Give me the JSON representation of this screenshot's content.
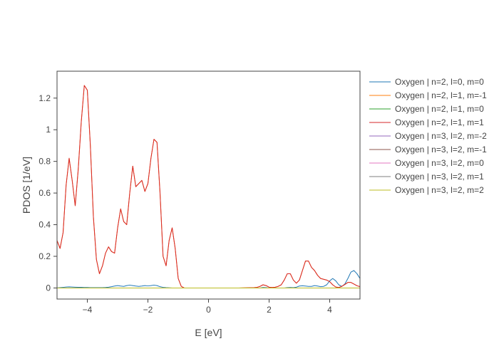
{
  "chart_data": {
    "type": "line",
    "xlabel": "E [eV]",
    "ylabel": "PDOS [1/eV]",
    "xlim": [
      -5,
      5
    ],
    "ylim": [
      -0.07,
      1.37
    ],
    "x_ticks": [
      -4,
      -2,
      0,
      2,
      4
    ],
    "x_tick_labels": [
      "−4",
      "−2",
      "0",
      "2",
      "4"
    ],
    "y_ticks": [
      0,
      0.2,
      0.4,
      0.6,
      0.8,
      1,
      1.2
    ],
    "y_tick_labels": [
      "0",
      "0.2",
      "0.4",
      "0.6",
      "0.8",
      "1",
      "1.2"
    ],
    "grid": false,
    "legend_position": "right",
    "x": [
      -5.0,
      -4.9,
      -4.8,
      -4.7,
      -4.6,
      -4.5,
      -4.4,
      -4.3,
      -4.2,
      -4.1,
      -4.0,
      -3.9,
      -3.8,
      -3.7,
      -3.6,
      -3.5,
      -3.4,
      -3.3,
      -3.2,
      -3.1,
      -3.0,
      -2.9,
      -2.8,
      -2.7,
      -2.6,
      -2.5,
      -2.4,
      -2.3,
      -2.2,
      -2.1,
      -2.0,
      -1.9,
      -1.8,
      -1.7,
      -1.6,
      -1.5,
      -1.4,
      -1.3,
      -1.2,
      -1.1,
      -1.0,
      -0.9,
      -0.8,
      -0.5,
      0.0,
      0.5,
      1.0,
      1.5,
      1.6,
      1.7,
      1.8,
      1.9,
      2.0,
      2.1,
      2.2,
      2.3,
      2.4,
      2.5,
      2.6,
      2.7,
      2.8,
      2.9,
      3.0,
      3.1,
      3.2,
      3.3,
      3.4,
      3.5,
      3.6,
      3.7,
      3.8,
      3.9,
      4.0,
      4.1,
      4.2,
      4.3,
      4.4,
      4.5,
      4.6,
      4.7,
      4.8,
      4.9,
      5.0
    ],
    "series": [
      {
        "name": "Oxygen | n=2, l=0, m=0",
        "color": "#1f77b4",
        "values": [
          0.0,
          0.002,
          0.004,
          0.006,
          0.007,
          0.006,
          0.005,
          0.004,
          0.004,
          0.003,
          0.003,
          0.002,
          0.002,
          0.002,
          0.002,
          0.002,
          0.003,
          0.005,
          0.008,
          0.012,
          0.015,
          0.012,
          0.01,
          0.015,
          0.018,
          0.015,
          0.012,
          0.01,
          0.012,
          0.015,
          0.013,
          0.015,
          0.018,
          0.015,
          0.008,
          0.004,
          0.002,
          0.001,
          0.0,
          0.0,
          0.0,
          0.0,
          0.0,
          0.0,
          0.0,
          0.0,
          0.0,
          0.0,
          0.0,
          0.0,
          0.003,
          0.002,
          0.0,
          0.0,
          0.0,
          0.0,
          0.0,
          0.0,
          0.002,
          0.003,
          0.002,
          0.005,
          0.012,
          0.014,
          0.012,
          0.01,
          0.01,
          0.015,
          0.012,
          0.008,
          0.01,
          0.02,
          0.045,
          0.06,
          0.045,
          0.02,
          0.01,
          0.025,
          0.06,
          0.1,
          0.11,
          0.09,
          0.06
        ]
      },
      {
        "name": "Oxygen | n=2, l=1, m=-1",
        "color": "#ff7f0e",
        "values": [
          0.3,
          0.25,
          0.35,
          0.65,
          0.82,
          0.68,
          0.52,
          0.75,
          1.05,
          1.28,
          1.25,
          0.9,
          0.45,
          0.18,
          0.09,
          0.14,
          0.22,
          0.26,
          0.23,
          0.22,
          0.38,
          0.5,
          0.42,
          0.4,
          0.6,
          0.77,
          0.64,
          0.66,
          0.68,
          0.61,
          0.66,
          0.82,
          0.94,
          0.92,
          0.6,
          0.2,
          0.14,
          0.3,
          0.38,
          0.25,
          0.06,
          0.01,
          0.0,
          0.0,
          0.0,
          0.0,
          0.0,
          0.002,
          0.004,
          0.01,
          0.02,
          0.015,
          0.005,
          0.003,
          0.005,
          0.01,
          0.02,
          0.05,
          0.09,
          0.09,
          0.05,
          0.03,
          0.05,
          0.11,
          0.17,
          0.17,
          0.13,
          0.11,
          0.08,
          0.06,
          0.055,
          0.05,
          0.04,
          0.02,
          0.006,
          0.003,
          0.01,
          0.022,
          0.035,
          0.035,
          0.025,
          0.014,
          0.008
        ]
      },
      {
        "name": "Oxygen | n=2, l=1, m=0",
        "color": "#2ca02c",
        "values": [
          0.0,
          0.0,
          0.0,
          0.0,
          0.0,
          0.0,
          0.0,
          0.0,
          0.0,
          0.0,
          0.0,
          0.0,
          0.0,
          0.0,
          0.0,
          0.0,
          0.0,
          0.0,
          0.0,
          0.0,
          0.0,
          0.0,
          0.0,
          0.0,
          0.0,
          0.0,
          0.0,
          0.0,
          0.0,
          0.0,
          0.0,
          0.0,
          0.0,
          0.0,
          0.0,
          0.0,
          0.0,
          0.0,
          0.0,
          0.0,
          0.0,
          0.0,
          0.0,
          0.0,
          0.0,
          0.0,
          0.0,
          0.0,
          0.0,
          0.0,
          0.0,
          0.0,
          0.0,
          0.0,
          0.0,
          0.0,
          0.0,
          0.0,
          0.0,
          0.0,
          0.0,
          0.0,
          0.0,
          0.0,
          0.0,
          0.0,
          0.0,
          0.0,
          0.0,
          0.0,
          0.0,
          0.0,
          0.0,
          0.0,
          0.0,
          0.0,
          0.0,
          0.0,
          0.0,
          0.0,
          0.0,
          0.0,
          0.0
        ]
      },
      {
        "name": "Oxygen | n=2, l=1, m=1",
        "color": "#d62728",
        "values": [
          0.3,
          0.25,
          0.35,
          0.65,
          0.82,
          0.68,
          0.52,
          0.75,
          1.05,
          1.28,
          1.25,
          0.9,
          0.45,
          0.18,
          0.09,
          0.14,
          0.22,
          0.26,
          0.23,
          0.22,
          0.38,
          0.5,
          0.42,
          0.4,
          0.6,
          0.77,
          0.64,
          0.66,
          0.68,
          0.61,
          0.66,
          0.82,
          0.94,
          0.92,
          0.6,
          0.2,
          0.14,
          0.3,
          0.38,
          0.25,
          0.06,
          0.01,
          0.0,
          0.0,
          0.0,
          0.0,
          0.0,
          0.002,
          0.004,
          0.01,
          0.02,
          0.015,
          0.005,
          0.003,
          0.005,
          0.01,
          0.02,
          0.05,
          0.09,
          0.09,
          0.05,
          0.03,
          0.05,
          0.11,
          0.17,
          0.17,
          0.13,
          0.11,
          0.08,
          0.06,
          0.055,
          0.05,
          0.04,
          0.02,
          0.006,
          0.003,
          0.01,
          0.022,
          0.035,
          0.035,
          0.025,
          0.014,
          0.008
        ]
      },
      {
        "name": "Oxygen | n=3, l=2, m=-2",
        "color": "#9467bd",
        "values": [
          0.0,
          0.0,
          0.0,
          0.0,
          0.0,
          0.0,
          0.0,
          0.0,
          0.0,
          0.0,
          0.0,
          0.0,
          0.0,
          0.0,
          0.0,
          0.0,
          0.0,
          0.0,
          0.0,
          0.0,
          0.0,
          0.0,
          0.0,
          0.0,
          0.0,
          0.0,
          0.0,
          0.0,
          0.0,
          0.0,
          0.0,
          0.0,
          0.0,
          0.0,
          0.0,
          0.0,
          0.0,
          0.0,
          0.0,
          0.0,
          0.0,
          0.0,
          0.0,
          0.0,
          0.0,
          0.0,
          0.0,
          0.0,
          0.0,
          0.0,
          0.0,
          0.0,
          0.0,
          0.0,
          0.0,
          0.0,
          0.0,
          0.0,
          0.0,
          0.0,
          0.0,
          0.0,
          0.0,
          0.0,
          0.0,
          0.0,
          0.0,
          0.0,
          0.0,
          0.0,
          0.0,
          0.0,
          0.0,
          0.0,
          0.0,
          0.0,
          0.0,
          0.0,
          0.0,
          0.0,
          0.0,
          0.0,
          0.0
        ]
      },
      {
        "name": "Oxygen | n=3, l=2, m=-1",
        "color": "#8c564b",
        "values": [
          0.0,
          0.0,
          0.0,
          0.0,
          0.0,
          0.0,
          0.0,
          0.0,
          0.0,
          0.0,
          0.0,
          0.0,
          0.0,
          0.0,
          0.0,
          0.0,
          0.0,
          0.0,
          0.0,
          0.0,
          0.0,
          0.0,
          0.0,
          0.0,
          0.0,
          0.0,
          0.0,
          0.0,
          0.0,
          0.0,
          0.0,
          0.0,
          0.0,
          0.0,
          0.0,
          0.0,
          0.0,
          0.0,
          0.0,
          0.0,
          0.0,
          0.0,
          0.0,
          0.0,
          0.0,
          0.0,
          0.0,
          0.0,
          0.0,
          0.0,
          0.0,
          0.0,
          0.0,
          0.0,
          0.0,
          0.0,
          0.0,
          0.0,
          0.0,
          0.0,
          0.0,
          0.0,
          0.0,
          0.0,
          0.0,
          0.0,
          0.0,
          0.0,
          0.0,
          0.0,
          0.0,
          0.0,
          0.0,
          0.0,
          0.0,
          0.0,
          0.0,
          0.0,
          0.0,
          0.0,
          0.0,
          0.0,
          0.0
        ]
      },
      {
        "name": "Oxygen | n=3, l=2, m=0",
        "color": "#e377c2",
        "values": [
          0.0,
          0.0,
          0.0,
          0.0,
          0.0,
          0.0,
          0.0,
          0.0,
          0.0,
          0.0,
          0.0,
          0.0,
          0.0,
          0.0,
          0.0,
          0.0,
          0.0,
          0.0,
          0.0,
          0.0,
          0.0,
          0.0,
          0.0,
          0.0,
          0.0,
          0.0,
          0.0,
          0.0,
          0.0,
          0.0,
          0.0,
          0.0,
          0.0,
          0.0,
          0.0,
          0.0,
          0.0,
          0.0,
          0.0,
          0.0,
          0.0,
          0.0,
          0.0,
          0.0,
          0.0,
          0.0,
          0.0,
          0.0,
          0.0,
          0.0,
          0.0,
          0.0,
          0.0,
          0.0,
          0.0,
          0.0,
          0.0,
          0.0,
          0.0,
          0.0,
          0.0,
          0.0,
          0.0,
          0.0,
          0.0,
          0.0,
          0.0,
          0.0,
          0.0,
          0.0,
          0.0,
          0.0,
          0.0,
          0.0,
          0.0,
          0.0,
          0.0,
          0.0,
          0.0,
          0.0,
          0.0,
          0.0,
          0.0
        ]
      },
      {
        "name": "Oxygen | n=3, l=2, m=1",
        "color": "#7f7f7f",
        "values": [
          0.0,
          0.0,
          0.0,
          0.0,
          0.0,
          0.0,
          0.0,
          0.0,
          0.0,
          0.0,
          0.0,
          0.0,
          0.0,
          0.0,
          0.0,
          0.0,
          0.0,
          0.0,
          0.0,
          0.0,
          0.0,
          0.0,
          0.0,
          0.0,
          0.0,
          0.0,
          0.0,
          0.0,
          0.0,
          0.0,
          0.0,
          0.0,
          0.0,
          0.0,
          0.0,
          0.0,
          0.0,
          0.0,
          0.0,
          0.0,
          0.0,
          0.0,
          0.0,
          0.0,
          0.0,
          0.0,
          0.0,
          0.0,
          0.0,
          0.0,
          0.0,
          0.0,
          0.0,
          0.0,
          0.0,
          0.0,
          0.0,
          0.0,
          0.0,
          0.0,
          0.0,
          0.0,
          0.0,
          0.0,
          0.0,
          0.0,
          0.0,
          0.0,
          0.0,
          0.0,
          0.0,
          0.0,
          0.0,
          0.0,
          0.0,
          0.0,
          0.0,
          0.0,
          0.0,
          0.0,
          0.0,
          0.0,
          0.0
        ]
      },
      {
        "name": "Oxygen | n=3, l=2, m=2",
        "color": "#bcbd22",
        "values": [
          0.0,
          0.0,
          0.0,
          0.0,
          0.0,
          0.0,
          0.0,
          0.0,
          0.0,
          0.0,
          0.0,
          0.0,
          0.0,
          0.0,
          0.0,
          0.0,
          0.0,
          0.0,
          0.0,
          0.0,
          0.0,
          0.0,
          0.0,
          0.0,
          0.0,
          0.0,
          0.0,
          0.0,
          0.0,
          0.0,
          0.0,
          0.0,
          0.0,
          0.0,
          0.0,
          0.0,
          0.0,
          0.0,
          0.0,
          0.0,
          0.0,
          0.0,
          0.0,
          0.0,
          0.0,
          0.0,
          0.0,
          0.0,
          0.0,
          0.0,
          0.0,
          0.0,
          0.0,
          0.0,
          0.0,
          0.0,
          0.0,
          0.0,
          0.0,
          0.0,
          0.0,
          0.0,
          0.0,
          0.0,
          0.0,
          0.0,
          0.0,
          0.0,
          0.0,
          0.0,
          0.0,
          0.0,
          0.0,
          0.0,
          0.0,
          0.0,
          0.0,
          0.0,
          0.0,
          0.0,
          0.0,
          0.0,
          0.0
        ]
      }
    ]
  }
}
